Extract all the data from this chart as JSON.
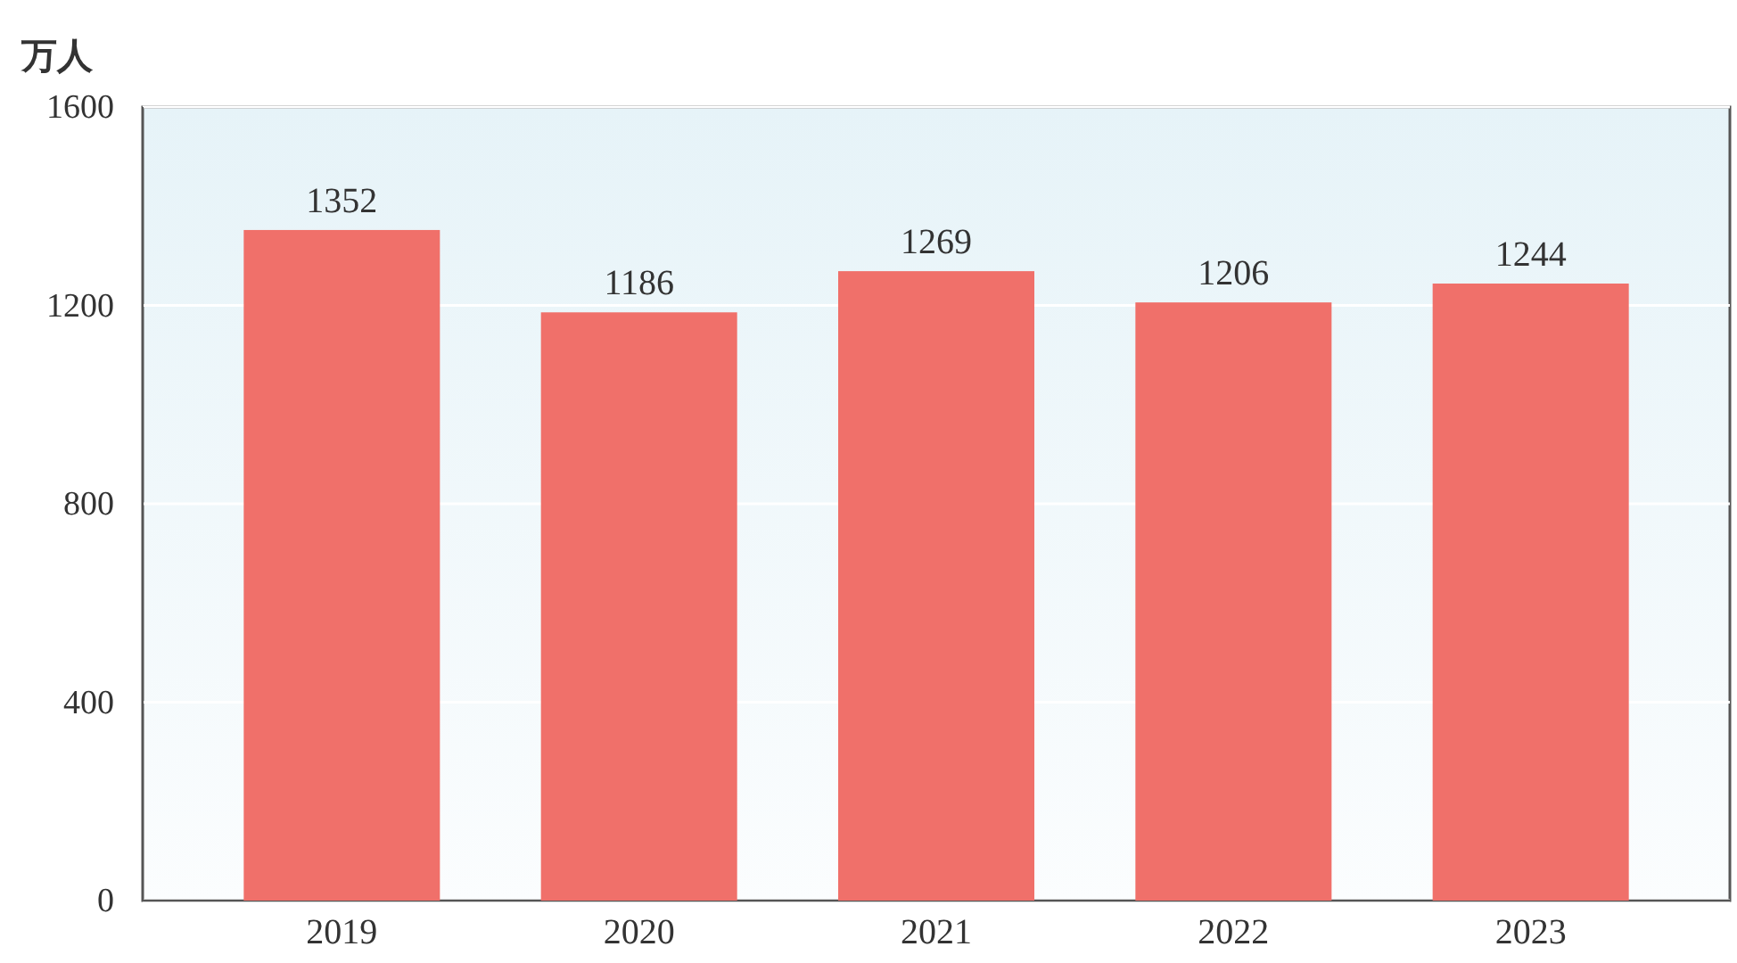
{
  "chart_data": {
    "type": "bar",
    "ylabel": "万人",
    "categories": [
      "2019",
      "2020",
      "2021",
      "2022",
      "2023"
    ],
    "values": [
      1352,
      1186,
      1269,
      1206,
      1244
    ],
    "color": "#f0706a",
    "ylim": [
      0,
      1600
    ],
    "yticks": [
      0,
      400,
      800,
      1200,
      1600
    ],
    "grid": "y",
    "data_labels": true
  }
}
